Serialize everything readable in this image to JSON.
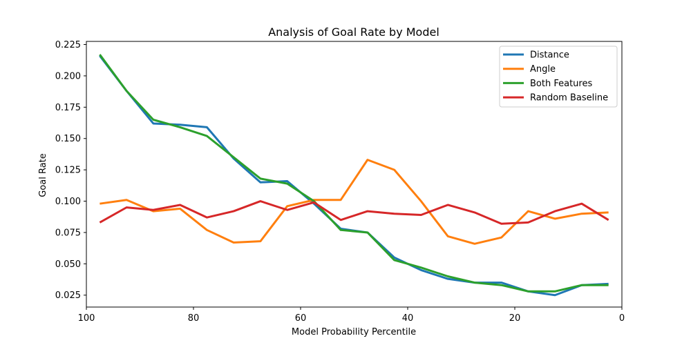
{
  "chart_data": {
    "type": "line",
    "title": "Analysis of Goal Rate by Model",
    "xlabel": "Model Probability Percentile",
    "ylabel": "Goal Rate",
    "xlim": [
      100,
      0
    ],
    "ylim": [
      0.0155,
      0.2275
    ],
    "x_ticks": [
      100,
      80,
      60,
      40,
      20,
      0
    ],
    "x_tick_labels": [
      "100",
      "80",
      "60",
      "40",
      "20",
      "0"
    ],
    "y_ticks": [
      0.025,
      0.05,
      0.075,
      0.1,
      0.125,
      0.15,
      0.175,
      0.2,
      0.225
    ],
    "y_tick_labels": [
      "0.025",
      "0.050",
      "0.075",
      "0.100",
      "0.125",
      "0.150",
      "0.175",
      "0.200",
      "0.225"
    ],
    "grid": false,
    "legend_position": "top-right",
    "x": [
      97.5,
      92.5,
      87.5,
      82.5,
      77.5,
      72.5,
      67.5,
      62.5,
      57.5,
      52.5,
      47.5,
      42.5,
      37.5,
      32.5,
      27.5,
      22.5,
      17.5,
      12.5,
      7.5,
      2.5
    ],
    "series": [
      {
        "name": "Distance",
        "color": "#1f77b4",
        "values": [
          0.216,
          0.188,
          0.162,
          0.161,
          0.159,
          0.134,
          0.115,
          0.116,
          0.098,
          0.078,
          0.075,
          0.055,
          0.045,
          0.038,
          0.035,
          0.035,
          0.028,
          0.025,
          0.033,
          0.034
        ]
      },
      {
        "name": "Angle",
        "color": "#ff7f0e",
        "values": [
          0.098,
          0.101,
          0.092,
          0.094,
          0.077,
          0.067,
          0.068,
          0.096,
          0.101,
          0.101,
          0.133,
          0.125,
          0.1,
          0.072,
          0.066,
          0.071,
          0.092,
          0.086,
          0.09,
          0.091
        ]
      },
      {
        "name": "Both Features",
        "color": "#2ca02c",
        "values": [
          0.217,
          0.188,
          0.165,
          0.159,
          0.152,
          0.135,
          0.118,
          0.114,
          0.1,
          0.077,
          0.075,
          0.053,
          0.047,
          0.04,
          0.035,
          0.033,
          0.028,
          0.028,
          0.033,
          0.033
        ]
      },
      {
        "name": "Random Baseline",
        "color": "#d62728",
        "values": [
          0.083,
          0.095,
          0.093,
          0.097,
          0.087,
          0.092,
          0.1,
          0.093,
          0.099,
          0.085,
          0.092,
          0.09,
          0.089,
          0.097,
          0.091,
          0.082,
          0.083,
          0.092,
          0.098,
          0.085
        ]
      }
    ]
  }
}
